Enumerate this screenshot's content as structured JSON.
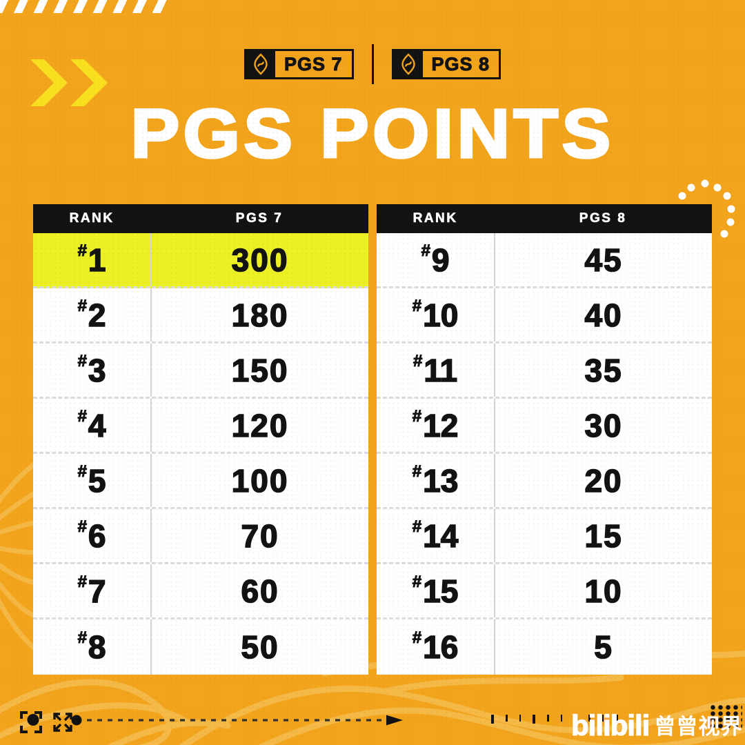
{
  "header": {
    "badges": [
      {
        "label": "PGS 7"
      },
      {
        "label": "PGS 8"
      }
    ],
    "title": "PGS POINTS"
  },
  "tables": [
    {
      "rank_prefix": "#",
      "headers": [
        "RANK",
        "PGS 7"
      ],
      "rows": [
        {
          "rank": "1",
          "points": "300",
          "highlight": true
        },
        {
          "rank": "2",
          "points": "180"
        },
        {
          "rank": "3",
          "points": "150"
        },
        {
          "rank": "4",
          "points": "120"
        },
        {
          "rank": "5",
          "points": "100"
        },
        {
          "rank": "6",
          "points": "70"
        },
        {
          "rank": "7",
          "points": "60"
        },
        {
          "rank": "8",
          "points": "50"
        }
      ]
    },
    {
      "rank_prefix": "#",
      "headers": [
        "RANK",
        "PGS 8"
      ],
      "rows": [
        {
          "rank": "9",
          "points": "45"
        },
        {
          "rank": "10",
          "points": "40"
        },
        {
          "rank": "11",
          "points": "35"
        },
        {
          "rank": "12",
          "points": "30"
        },
        {
          "rank": "13",
          "points": "20"
        },
        {
          "rank": "14",
          "points": "15"
        },
        {
          "rank": "15",
          "points": "10"
        },
        {
          "rank": "16",
          "points": "5"
        }
      ]
    }
  ],
  "footer": {
    "brand": "bilibili",
    "studio": "曾曾视界"
  },
  "icons": {
    "badge_logo": "pgs-shield-icon",
    "left_accent": "double-chevron-icon",
    "viewfinder": "viewfinder-icon",
    "expand": "expand-arrows-icon"
  },
  "colors": {
    "background": "#F2A41C",
    "highlight_row": "#EBF125",
    "header_bg": "#121212",
    "accent_yellow": "#F9E01F",
    "wave": "#F7C35A",
    "text_dark": "#121212",
    "text_light": "#FFFFFF"
  },
  "chart_data": [
    {
      "type": "table",
      "title": "PGS 7 points by rank",
      "columns": [
        "RANK",
        "PGS 7"
      ],
      "rows": [
        [
          "#1",
          300
        ],
        [
          "#2",
          180
        ],
        [
          "#3",
          150
        ],
        [
          "#4",
          120
        ],
        [
          "#5",
          100
        ],
        [
          "#6",
          70
        ],
        [
          "#7",
          60
        ],
        [
          "#8",
          50
        ]
      ],
      "highlighted_row": "#1"
    },
    {
      "type": "table",
      "title": "PGS 8 points by rank",
      "columns": [
        "RANK",
        "PGS 8"
      ],
      "rows": [
        [
          "#9",
          45
        ],
        [
          "#10",
          40
        ],
        [
          "#11",
          35
        ],
        [
          "#12",
          30
        ],
        [
          "#13",
          20
        ],
        [
          "#14",
          15
        ],
        [
          "#15",
          10
        ],
        [
          "#16",
          5
        ]
      ]
    }
  ]
}
